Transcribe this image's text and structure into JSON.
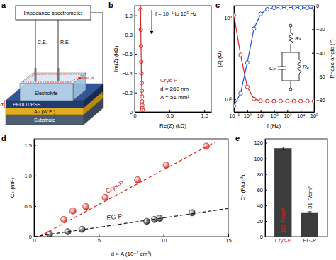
{
  "diagram": {
    "title": "a",
    "labels": {
      "spectrometer": "Impedance spectrometer",
      "ce": "C.E.",
      "re": "R.E.",
      "electrolyte": "Electrolyte",
      "active": "PEDOT:PSS",
      "electrode": "Au (W.E.)",
      "substrate": "Substrate",
      "area": "A",
      "thickness": "d"
    }
  },
  "chart_data": [
    {
      "type": "scatter",
      "title": "b",
      "x_label": "Re(Z) (kΩ)",
      "y_label": "Im(Z) (kΩ)",
      "xlim": [
        0,
        1.1
      ],
      "ylim": [
        0,
        -1.1
      ],
      "xticks": [
        0,
        0.5,
        {
          "value": 1,
          "label": "1.0"
        }
      ],
      "yticks": [
        0,
        {
          "value": -0.2,
          "label": "−0.2"
        },
        {
          "value": -0.4,
          "label": "−0.4"
        },
        {
          "value": -0.6,
          "label": "−0.6"
        },
        {
          "value": -0.8,
          "label": "−0.8"
        },
        {
          "value": -1,
          "label": "−1.0"
        }
      ],
      "annotations": [
        "f = 10⁻¹ to 10⁵ Hz",
        "Crys-P",
        "d = 260 nm",
        "A = 51 mm²"
      ],
      "series": [
        {
          "type": "scatter",
          "marker": "open-circle",
          "color": "#d62728",
          "x": [
            0.085,
            0.088,
            0.091,
            0.094,
            0.097,
            0.1,
            0.102,
            0.104,
            0.106,
            0.108,
            0.11,
            0.112
          ],
          "values": [
            -1.06,
            -0.85,
            -0.68,
            -0.52,
            -0.4,
            -0.3,
            -0.22,
            -0.16,
            -0.11,
            -0.07,
            -0.04,
            -0.02
          ]
        },
        {
          "type": "line",
          "line_style": "solid",
          "color": "#d62728",
          "x": [
            0.084,
            0.095,
            0.105,
            0.113
          ],
          "values": [
            -1.1,
            -0.45,
            -0.14,
            0
          ]
        }
      ]
    },
    {
      "type": "line",
      "title": "c",
      "x_label": "f (Hz)",
      "y_label": "|Z| (Ω)",
      "y2_label": "Phase angle (°)",
      "log": true,
      "xlim": [
        0.1,
        100000
      ],
      "ylim": [
        70,
        1400
      ],
      "y2lim": [
        -90,
        0
      ],
      "xticks": [
        {
          "value": 0.1,
          "label": "10⁻¹"
        },
        {
          "value": 1,
          "label": "10⁰"
        },
        {
          "value": 10,
          "label": "10¹"
        },
        {
          "value": 100,
          "label": "10²"
        },
        {
          "value": 1000,
          "label": "10³"
        },
        {
          "value": 10000,
          "label": "10⁴"
        },
        {
          "value": 100000,
          "label": "10⁵"
        }
      ],
      "yticks": [
        {
          "value": 100,
          "label": "10²"
        },
        {
          "value": 1000,
          "label": "10³"
        }
      ],
      "y2ticks": [
        0,
        {
          "value": -20,
          "label": "−20"
        },
        {
          "value": -40,
          "label": "−40"
        },
        {
          "value": -60,
          "label": "−60"
        },
        {
          "value": -80,
          "label": "−80"
        }
      ],
      "annotations": [
        "Rₛ",
        "Cₚ",
        "Rₚ"
      ],
      "series": [
        {
          "type": "line",
          "marker": "open-circle",
          "color": "#d62728",
          "x": [
            0.1,
            0.316,
            1,
            3.16,
            10,
            31.6,
            100,
            316,
            1000,
            3160,
            10000,
            31600,
            100000
          ],
          "values": [
            1065,
            349,
            142,
            101,
            95.6,
            95.1,
            95,
            95,
            95,
            95,
            95,
            95,
            95
          ]
        },
        {
          "type": "line",
          "marker": "open-circle",
          "color": "#1f4fd6",
          "axis": "y2",
          "x": [
            0.1,
            0.316,
            1,
            3.16,
            10,
            31.6,
            100,
            316,
            1000,
            3160,
            10000,
            31600,
            100000
          ],
          "values": [
            -84.9,
            -74.2,
            -48.2,
            -19.5,
            -7.0,
            -3.0,
            -1.8,
            -1.5,
            -1.5,
            -1.5,
            -1.6,
            -1.8,
            -2.0
          ]
        }
      ]
    },
    {
      "type": "scatter",
      "title": "d",
      "x_label": "d × A (10⁻¹ cm³)",
      "y_label": "Cₚ (mF)",
      "xlim": [
        0,
        15
      ],
      "ylim": [
        0,
        1.6
      ],
      "xticks": [
        0,
        5,
        10,
        15
      ],
      "yticks": [
        0,
        0.5,
        {
          "value": 1,
          "label": "1.0"
        },
        1.5
      ],
      "series": [
        {
          "name": "Crys-P",
          "type": "scatter",
          "marker": "sphere",
          "color": "#e3211c",
          "x": [
            2.3,
            3.0,
            4.0,
            5.5,
            8.0,
            10.2,
            13.3
          ],
          "values": [
            0.28,
            0.42,
            0.49,
            0.64,
            0.93,
            1.17,
            1.48
          ]
        },
        {
          "name": "EG-P",
          "type": "scatter",
          "marker": "sphere",
          "color": "#1a1a1a",
          "x": [
            1.2,
            2.6,
            3.7,
            8.7,
            9.3,
            9.7,
            12.2
          ],
          "values": [
            0.04,
            0.08,
            0.12,
            0.25,
            0.28,
            0.3,
            0.39
          ]
        },
        {
          "type": "line",
          "line_style": "dashed",
          "color": "#e3211c",
          "x": [
            0.4,
            14
          ],
          "values": [
            0,
            1.55
          ]
        },
        {
          "type": "line",
          "line_style": "dashed",
          "color": "#1a1a1a",
          "x": [
            0,
            15
          ],
          "values": [
            0,
            0.46
          ]
        }
      ]
    },
    {
      "type": "bar",
      "title": "e",
      "y_label": "C* (F/cm³)",
      "categories": [
        "Crys-P",
        "EG-P"
      ],
      "values": [
        113,
        31
      ],
      "errors": [
        1.5,
        0.8
      ],
      "value_labels": [
        "113 F/cm³",
        "31 F/cm³"
      ],
      "data_labels": true,
      "color": "#3c3c3c",
      "ylim": [
        0,
        125
      ],
      "yticks": [
        0,
        20,
        40,
        60,
        80,
        100,
        120
      ]
    }
  ]
}
